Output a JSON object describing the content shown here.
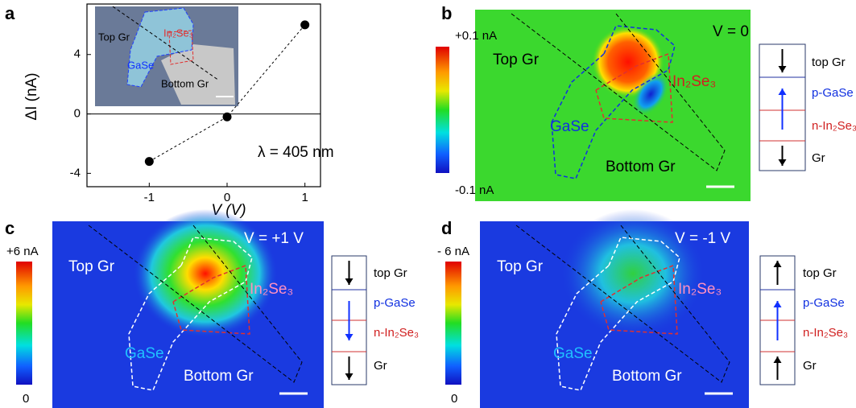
{
  "chart_data": {
    "type": "line",
    "xlabel": "V (V)",
    "ylabel": "ΔI (nA)",
    "annotation": "λ = 405 nm",
    "x": [
      -1,
      0,
      1
    ],
    "values": [
      -3.2,
      -0.2,
      6.0
    ],
    "color": "#000000",
    "xlim": [
      -1.8,
      1.2
    ],
    "ylim": [
      -4.9,
      7.4
    ],
    "xticks": [
      -1,
      0,
      1
    ],
    "yticks": [
      -4,
      0,
      4
    ]
  },
  "panels": {
    "a": {
      "label": "a",
      "inset": [
        "Top Gr",
        "In₂Se₃",
        "GaSe",
        "Bottom Gr"
      ]
    },
    "b": {
      "label": "b",
      "colorbar": [
        "+0.1 nA",
        "-0.1 nA"
      ],
      "condition": "V = 0",
      "regions": [
        "Top Gr",
        "In₂Se₃",
        "GaSe",
        "Bottom Gr"
      ],
      "stack": [
        "top Gr",
        "p-GaSe",
        "n-In₂Se₃",
        "Gr"
      ]
    },
    "c": {
      "label": "c",
      "colorbar": [
        "+6 nA",
        "0"
      ],
      "condition": "V = +1 V",
      "regions": [
        "Top Gr",
        "In₂Se₃",
        "GaSe",
        "Bottom Gr"
      ],
      "stack": [
        "top Gr",
        "p-GaSe",
        "n-In₂Se₃",
        "Gr"
      ]
    },
    "d": {
      "label": "d",
      "colorbar": [
        "- 6 nA",
        "0"
      ],
      "condition": "V = -1 V",
      "regions": [
        "Top Gr",
        "In₂Se₃",
        "GaSe",
        "Bottom Gr"
      ],
      "stack": [
        "top Gr",
        "p-GaSe",
        "n-In₂Se₃",
        "Gr"
      ]
    }
  }
}
